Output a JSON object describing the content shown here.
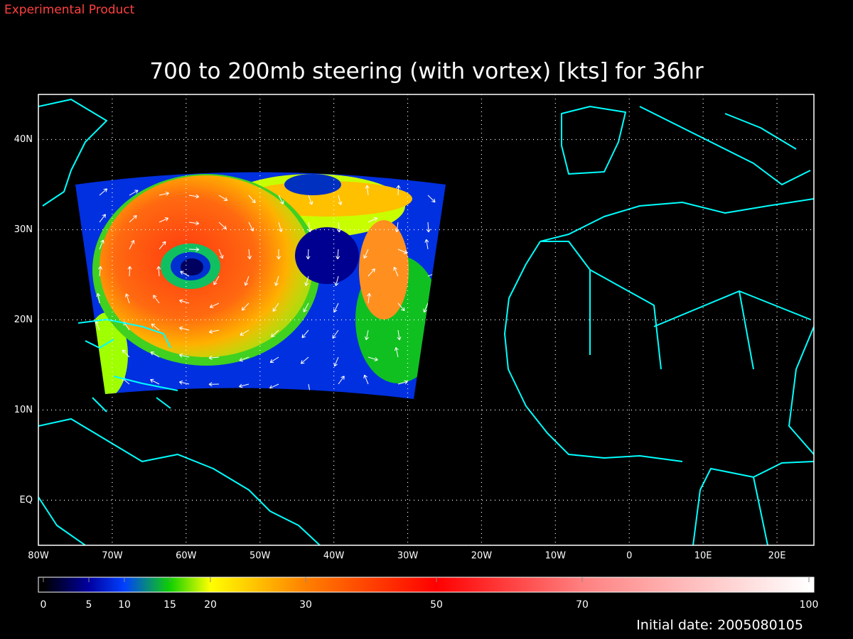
{
  "header": {
    "label": "Experimental Product"
  },
  "title": "700 to 200mb steering (with vortex) [kts] for 36hr",
  "map": {
    "xlim": [
      -80,
      25
    ],
    "ylim": [
      -5,
      45
    ],
    "xticks": [
      {
        "value": -80,
        "label": "80W"
      },
      {
        "value": -70,
        "label": "70W"
      },
      {
        "value": -60,
        "label": "60W"
      },
      {
        "value": -50,
        "label": "50W"
      },
      {
        "value": -40,
        "label": "40W"
      },
      {
        "value": -30,
        "label": "30W"
      },
      {
        "value": -20,
        "label": "20W"
      },
      {
        "value": -10,
        "label": "10W"
      },
      0,
      {
        "value": 10,
        "label": "10E"
      },
      {
        "value": 20,
        "label": "20E"
      }
    ],
    "yticks": [
      {
        "value": 0,
        "label": "EQ"
      },
      {
        "value": 10,
        "label": "10N"
      },
      {
        "value": 20,
        "label": "20N"
      },
      {
        "value": 30,
        "label": "30N"
      },
      {
        "value": 40,
        "label": "40N"
      }
    ],
    "grid": true
  },
  "colorbar": {
    "ticks": [
      0,
      5,
      10,
      15,
      20,
      30,
      50,
      70,
      100
    ]
  },
  "footer": "Initial date: 2005080105"
}
